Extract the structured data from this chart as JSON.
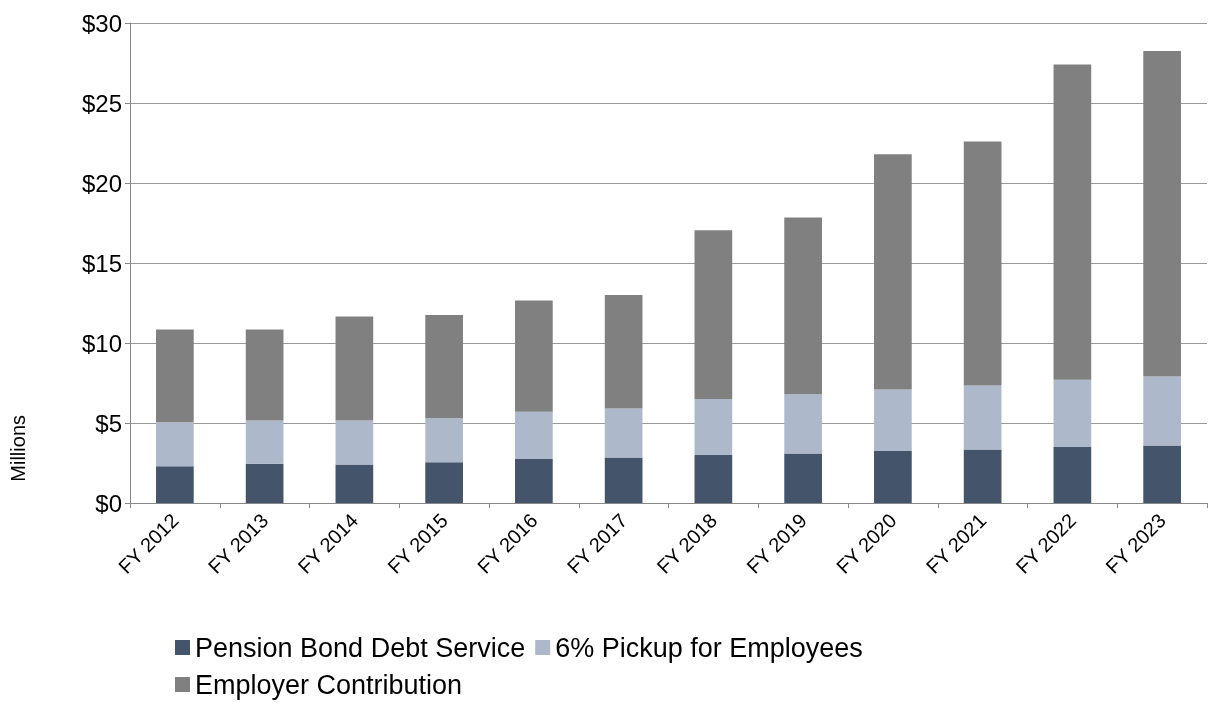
{
  "chart_data": {
    "type": "bar",
    "stacked": true,
    "ylabel": "Millions",
    "categories": [
      "FY 2012",
      "FY 2013",
      "FY 2014",
      "FY 2015",
      "FY 2016",
      "FY 2017",
      "FY 2018",
      "FY 2019",
      "FY 2020",
      "FY 2021",
      "FY 2022",
      "FY 2023"
    ],
    "series": [
      {
        "name": "Pension Bond Debt Service",
        "color": "#44546a",
        "values": [
          2.3,
          2.45,
          2.4,
          2.55,
          2.75,
          2.85,
          3.0,
          3.1,
          3.25,
          3.35,
          3.5,
          3.6
        ]
      },
      {
        "name": "6% Pickup for Employees",
        "color": "#adb9ca",
        "values": [
          2.75,
          2.7,
          2.75,
          2.75,
          2.95,
          3.05,
          3.5,
          3.7,
          3.85,
          4.0,
          4.2,
          4.3
        ]
      },
      {
        "name": "Employer Contribution",
        "color": "#808080",
        "values": [
          5.8,
          5.7,
          6.5,
          6.45,
          6.95,
          7.1,
          10.55,
          11.05,
          14.7,
          15.25,
          19.7,
          20.35
        ]
      }
    ],
    "ylim": [
      0,
      30
    ],
    "yticks": [
      {
        "value": 0,
        "label": "$0"
      },
      {
        "value": 5,
        "label": "$5"
      },
      {
        "value": 10,
        "label": "$10"
      },
      {
        "value": 15,
        "label": "$15"
      },
      {
        "value": 20,
        "label": "$20"
      },
      {
        "value": 25,
        "label": "$25"
      },
      {
        "value": 30,
        "label": "$30"
      }
    ],
    "grid": "y",
    "legend": "bottom"
  }
}
